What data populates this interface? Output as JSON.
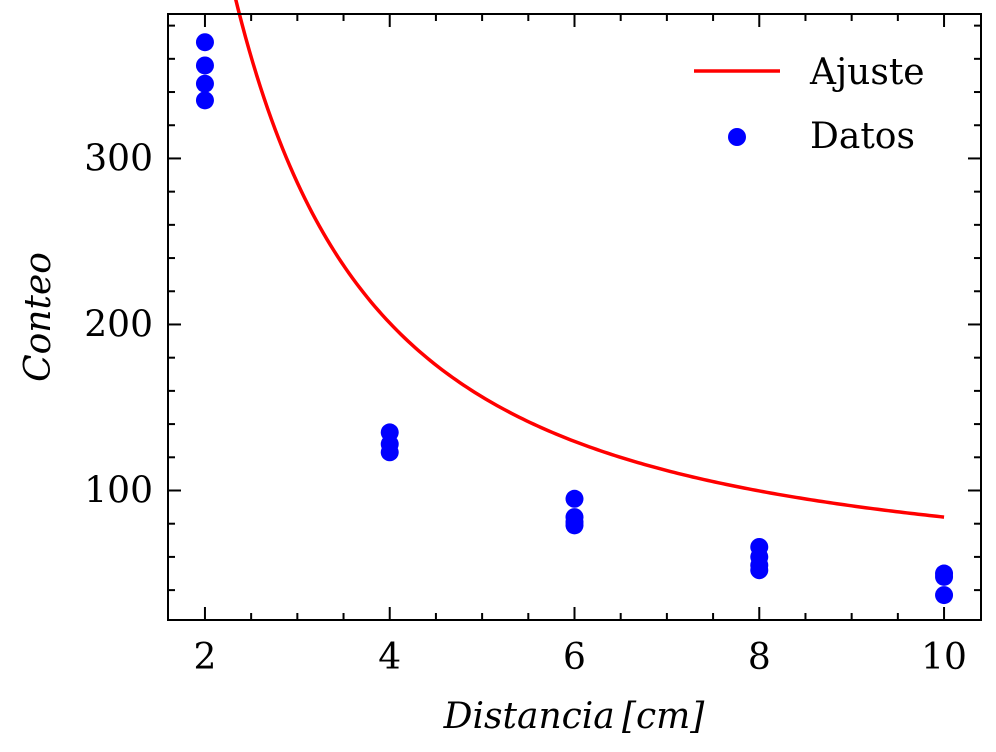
{
  "chart_data": {
    "type": "scatter",
    "xlabel": "Distancia [cm]",
    "ylabel": "Conteo",
    "xlim": [
      1.6,
      10.4
    ],
    "ylim": [
      22,
      387
    ],
    "x_ticks": [
      2,
      4,
      6,
      8,
      10
    ],
    "y_ticks": [
      100,
      200,
      300
    ],
    "x_minor_step": 0.5,
    "y_minor_step": 20,
    "grid": false,
    "legend_position": "top-right",
    "series": [
      {
        "name": "Datos",
        "kind": "scatter",
        "color": "#0000ff",
        "points": [
          [
            2,
            370
          ],
          [
            2,
            356
          ],
          [
            2,
            345
          ],
          [
            2,
            335
          ],
          [
            4,
            135
          ],
          [
            4,
            128
          ],
          [
            4,
            123
          ],
          [
            6,
            95
          ],
          [
            6,
            84
          ],
          [
            6,
            81
          ],
          [
            6,
            79
          ],
          [
            8,
            66
          ],
          [
            8,
            60
          ],
          [
            8,
            55
          ],
          [
            8,
            52
          ],
          [
            10,
            50
          ],
          [
            10,
            48
          ],
          [
            10,
            37
          ]
        ]
      },
      {
        "name": "Ajuste",
        "kind": "line",
        "color": "#ff0000",
        "model": {
          "a": 44.4,
          "b": 1252,
          "p": 1.5
        },
        "x_range": [
          2,
          10
        ]
      }
    ]
  }
}
